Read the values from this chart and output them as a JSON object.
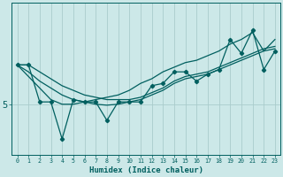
{
  "xlabel": "Humidex (Indice chaleur)",
  "ylabel": "",
  "bg_color": "#cce8e8",
  "grid_color": "#aacccc",
  "line_color": "#005f5f",
  "x": [
    0,
    1,
    2,
    3,
    4,
    5,
    6,
    7,
    8,
    9,
    10,
    11,
    12,
    13,
    14,
    15,
    16,
    17,
    18,
    19,
    20,
    21,
    22,
    23
  ],
  "y_data": [
    5.85,
    5.85,
    5.05,
    5.05,
    4.25,
    5.1,
    5.05,
    5.05,
    4.65,
    5.05,
    5.05,
    5.05,
    5.4,
    5.45,
    5.7,
    5.7,
    5.5,
    5.65,
    5.75,
    6.4,
    6.1,
    6.6,
    5.75,
    6.15
  ],
  "y_upper_line": [
    5.85,
    5.85,
    5.7,
    5.55,
    5.4,
    5.3,
    5.2,
    5.15,
    5.1,
    5.1,
    5.1,
    5.15,
    5.25,
    5.35,
    5.5,
    5.6,
    5.65,
    5.7,
    5.8,
    5.9,
    6.0,
    6.1,
    6.2,
    6.25
  ],
  "y_mid_line": [
    5.85,
    5.7,
    5.5,
    5.35,
    5.2,
    5.1,
    5.05,
    5.0,
    4.98,
    5.0,
    5.05,
    5.1,
    5.2,
    5.3,
    5.45,
    5.55,
    5.6,
    5.65,
    5.75,
    5.85,
    5.95,
    6.05,
    6.15,
    6.2
  ],
  "y_diag_line": [
    5.85,
    5.6,
    5.35,
    5.1,
    5.0,
    5.0,
    5.05,
    5.1,
    5.15,
    5.2,
    5.3,
    5.45,
    5.55,
    5.7,
    5.8,
    5.9,
    5.95,
    6.05,
    6.15,
    6.3,
    6.4,
    6.55,
    6.15,
    6.4
  ],
  "yticks": [
    5
  ],
  "ylim": [
    3.9,
    7.2
  ],
  "xlim": [
    -0.5,
    23.5
  ]
}
